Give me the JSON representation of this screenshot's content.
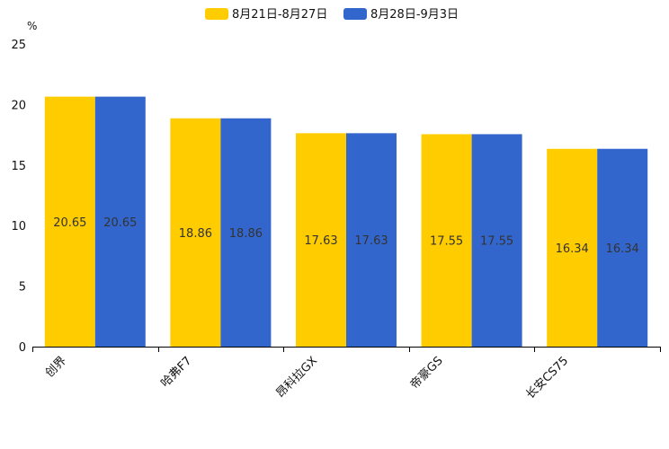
{
  "chart_data": {
    "type": "bar",
    "title": "",
    "xlabel": "",
    "ylabel": "",
    "unit": "%",
    "ylim": [
      0,
      25
    ],
    "yticks": [
      0,
      5,
      10,
      15,
      20,
      25
    ],
    "grid": false,
    "legend_position": "top-center",
    "categories": [
      "创界",
      "哈弗F7",
      "昂科拉GX",
      "帝豪GS",
      "长安CS75"
    ],
    "series": [
      {
        "name": "8月21日-8月27日",
        "color": "#FFCC00",
        "values": [
          20.65,
          18.86,
          17.63,
          17.55,
          16.34
        ]
      },
      {
        "name": "8月28日-9月3日",
        "color": "#3366CC",
        "values": [
          20.65,
          18.86,
          17.63,
          17.55,
          16.34
        ]
      }
    ]
  }
}
